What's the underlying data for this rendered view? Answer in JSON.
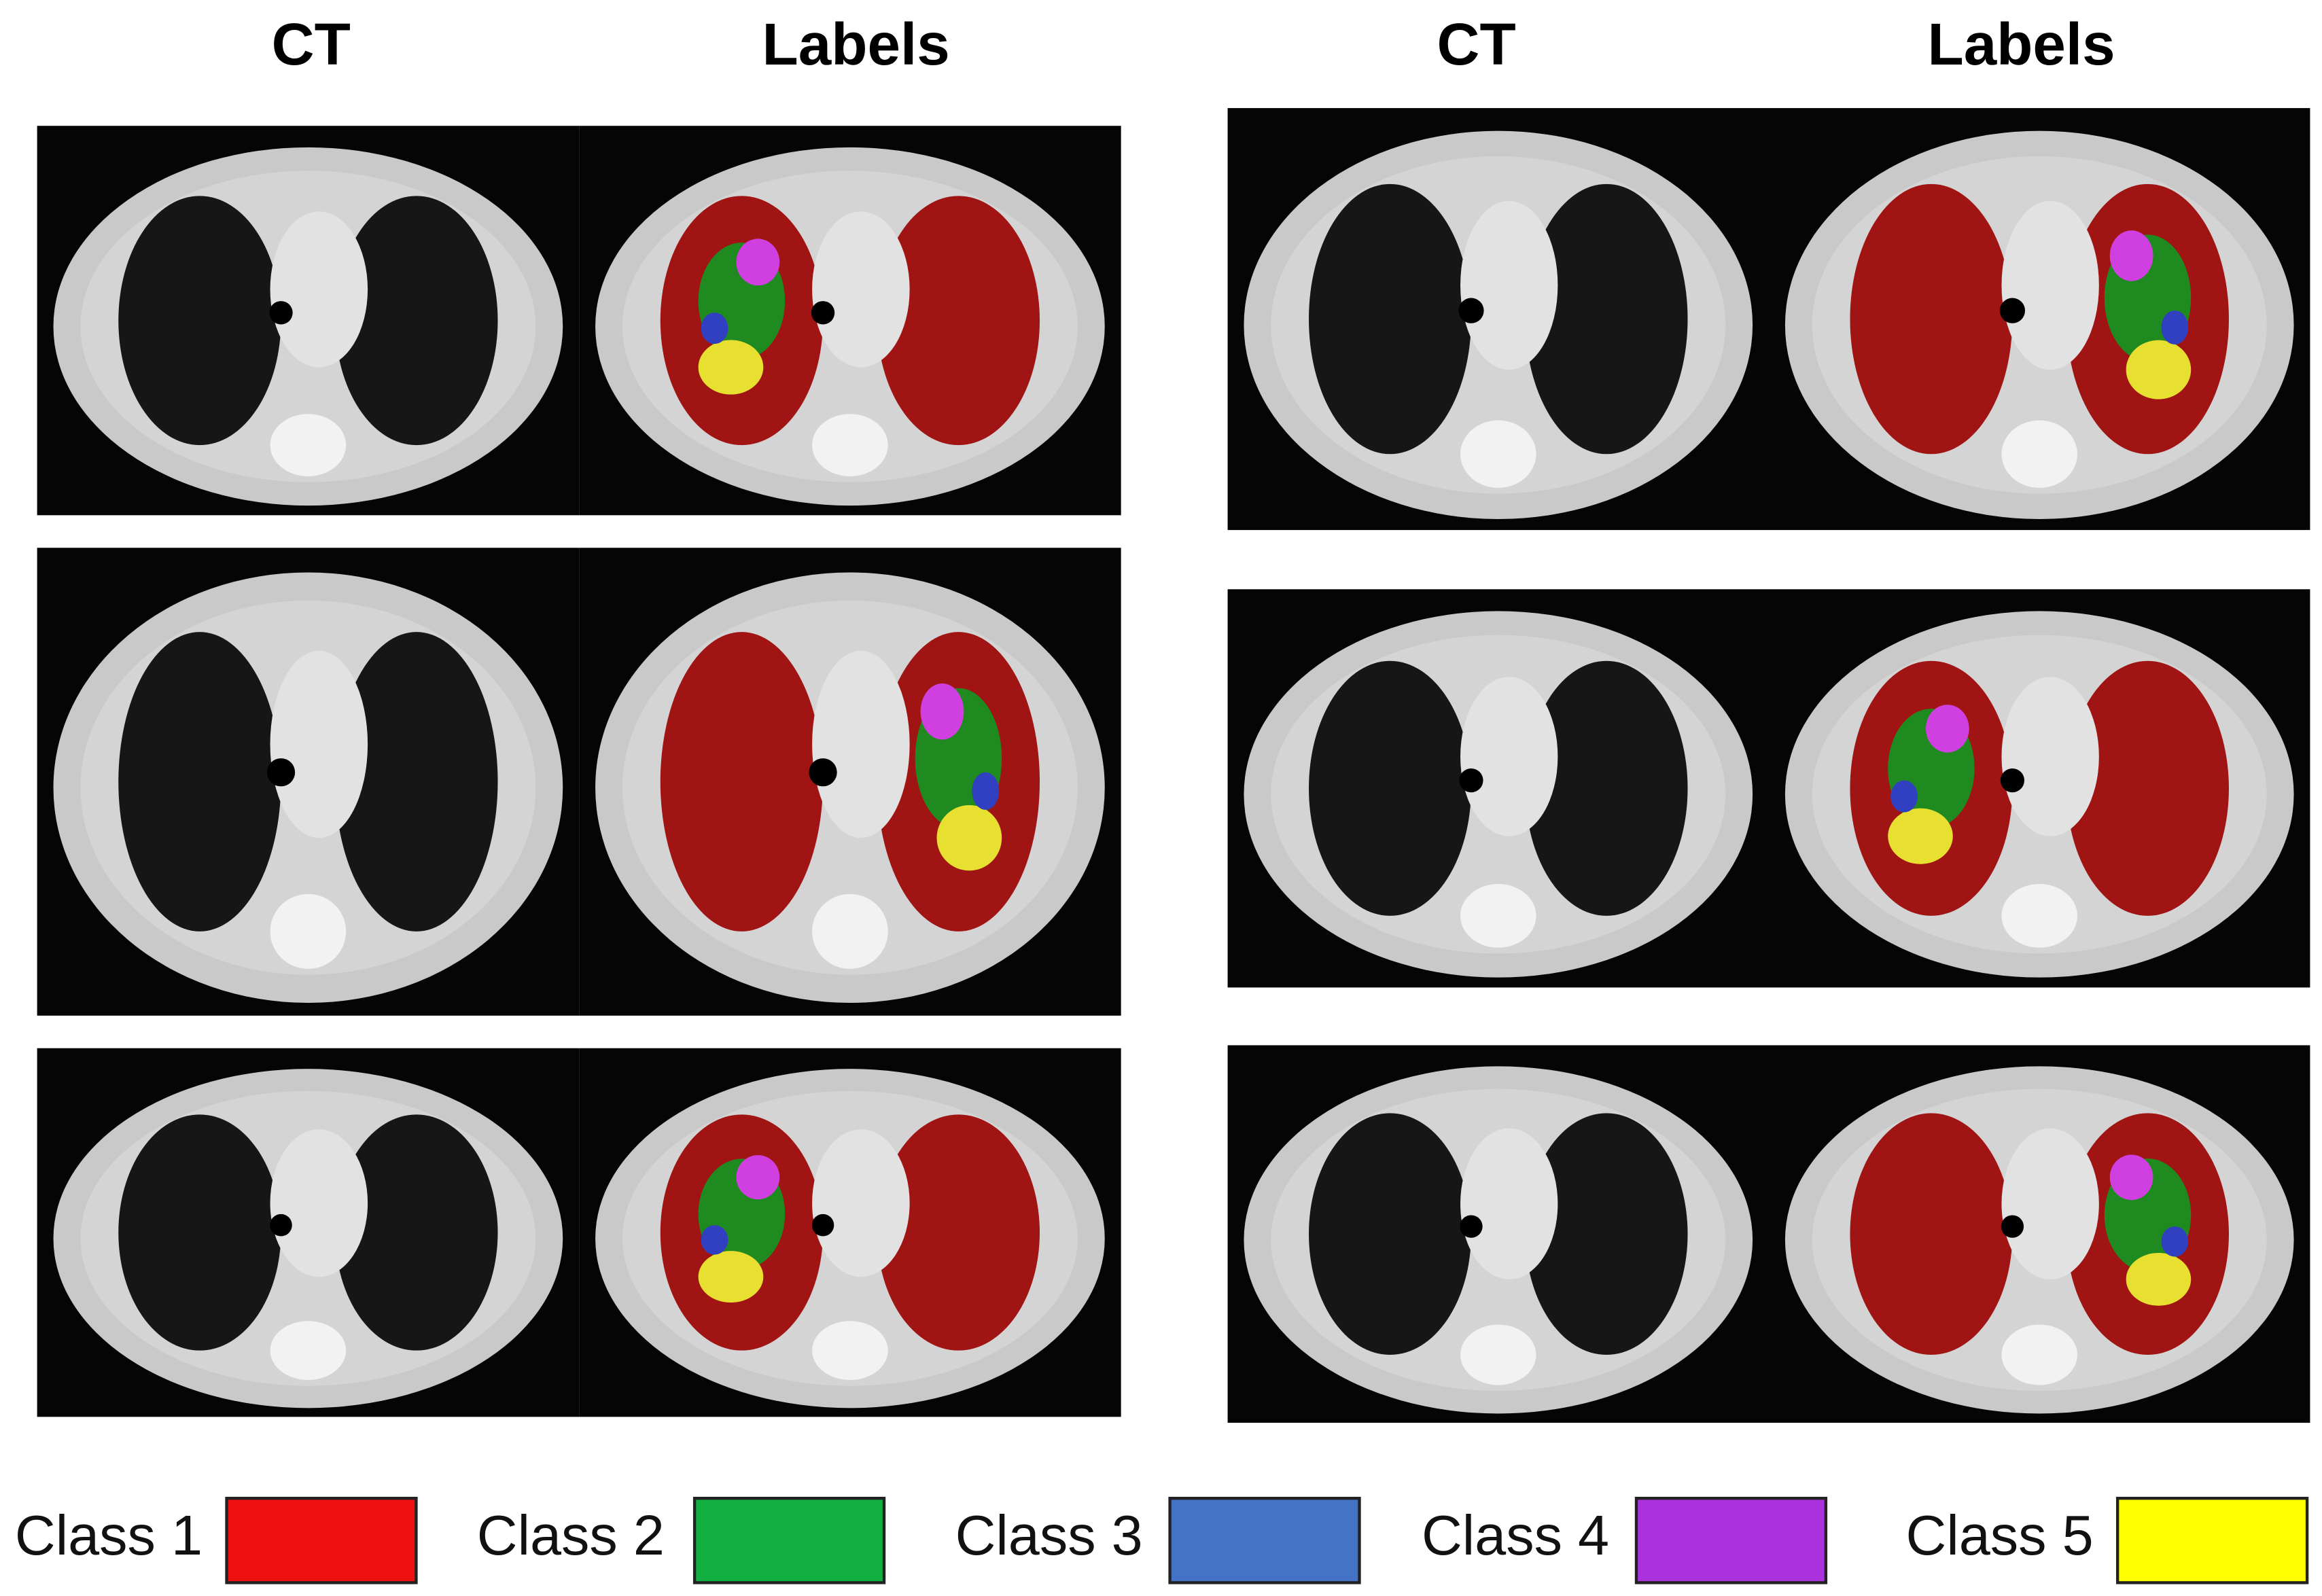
{
  "headers": [
    "CT",
    "Labels",
    "CT",
    "Labels"
  ],
  "legend": [
    {
      "label": "Class 1",
      "color": "#ee1111"
    },
    {
      "label": "Class 2",
      "color": "#11b040"
    },
    {
      "label": "Class 3",
      "color": "#4472c4"
    },
    {
      "label": "Class 4",
      "color": "#aa33dd"
    },
    {
      "label": "Class 5",
      "color": "#ffff00"
    }
  ]
}
